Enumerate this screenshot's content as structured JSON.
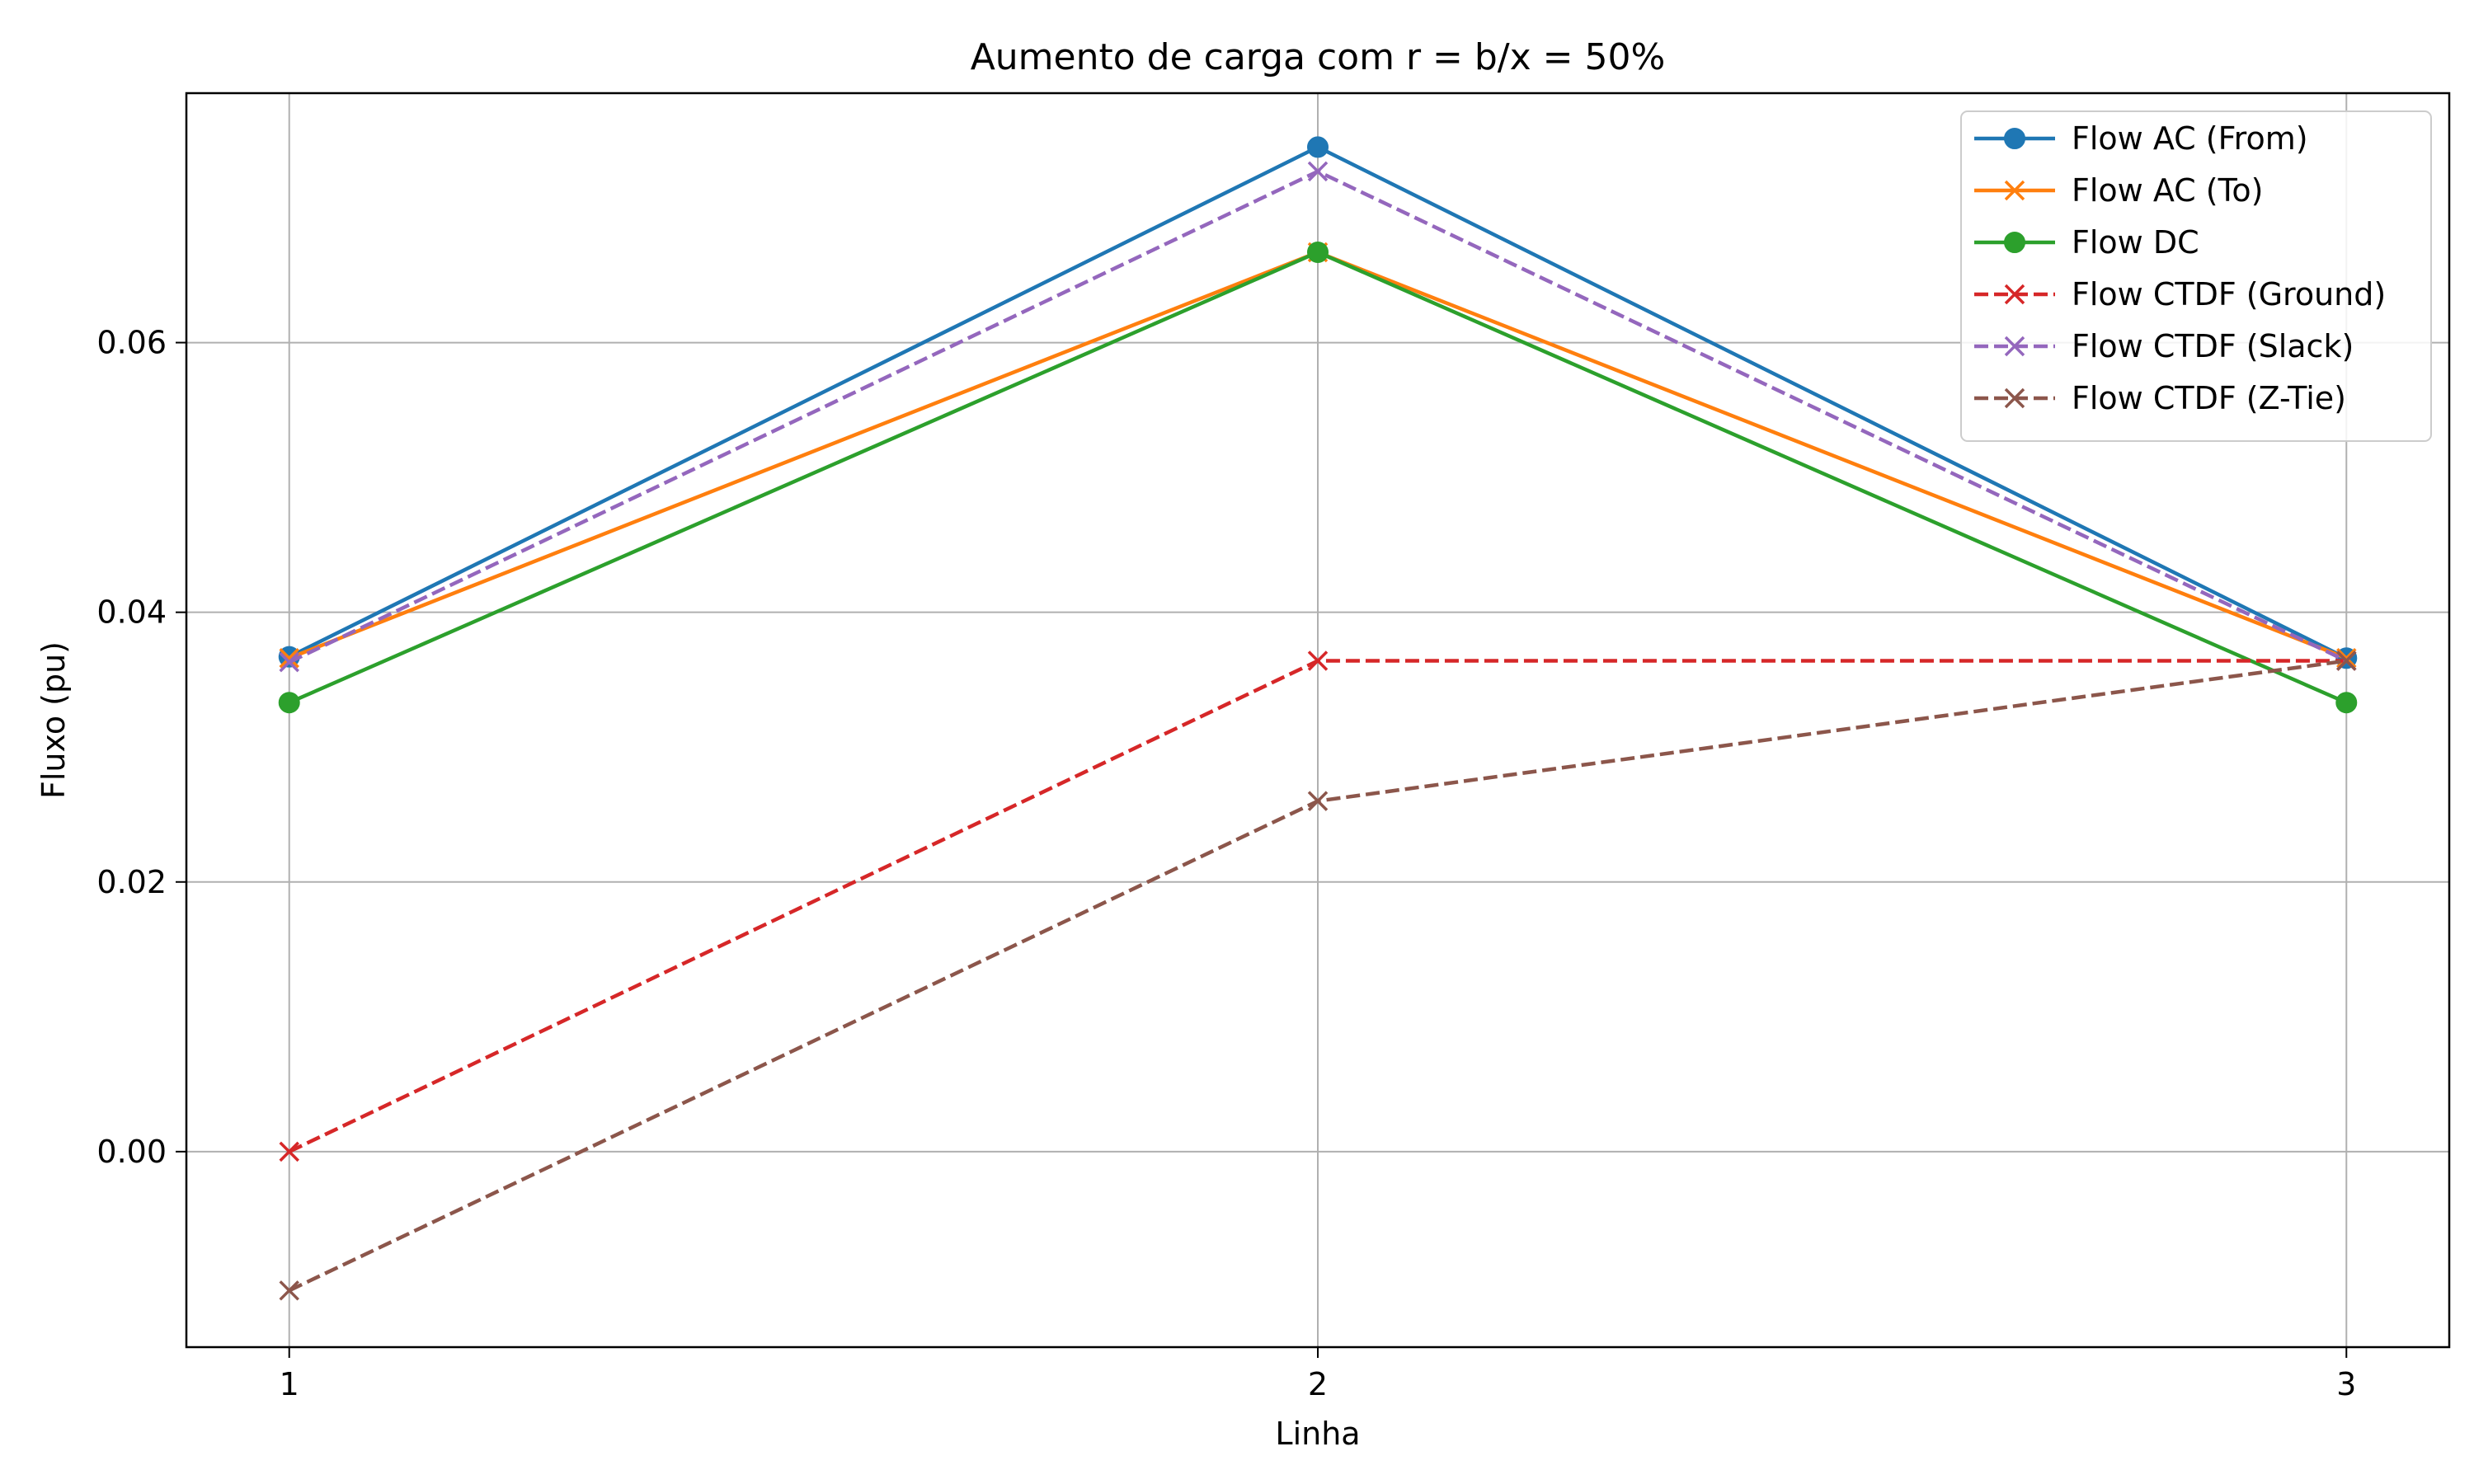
{
  "chart_data": {
    "type": "line",
    "title": "Aumento de carga com r = b/x = 50%",
    "xlabel": "Linha",
    "ylabel": "Fluxo (pu)",
    "x": [
      1,
      2,
      3
    ],
    "x_tick_labels": [
      "1",
      "2",
      "3"
    ],
    "xlim": [
      0.9,
      3.1
    ],
    "ylim": [
      -0.0145,
      0.0785
    ],
    "y_ticks": [
      0.0,
      0.02,
      0.04,
      0.06
    ],
    "y_tick_labels": [
      "0.00",
      "0.02",
      "0.04",
      "0.06"
    ],
    "grid": true,
    "legend_position": "top-right",
    "series": [
      {
        "name": "Flow AC (From)",
        "values": [
          0.0367,
          0.0745,
          0.0366
        ],
        "color": "#1f77b4",
        "linestyle": "solid",
        "marker": "circle"
      },
      {
        "name": "Flow AC (To)",
        "values": [
          0.0366,
          0.0667,
          0.0366
        ],
        "color": "#ff7f0e",
        "linestyle": "solid",
        "marker": "x"
      },
      {
        "name": "Flow DC",
        "values": [
          0.0333,
          0.0667,
          0.0333
        ],
        "color": "#2ca02c",
        "linestyle": "solid",
        "marker": "circle"
      },
      {
        "name": "Flow CTDF (Ground)",
        "values": [
          0.0,
          0.0364,
          0.0364
        ],
        "color": "#d62728",
        "linestyle": "dashed",
        "marker": "x"
      },
      {
        "name": "Flow CTDF (Slack)",
        "values": [
          0.0363,
          0.0727,
          0.0364
        ],
        "color": "#9467bd",
        "linestyle": "dashed",
        "marker": "x"
      },
      {
        "name": "Flow CTDF (Z-Tie)",
        "values": [
          -0.0103,
          0.026,
          0.0364
        ],
        "color": "#8c564b",
        "linestyle": "dashed",
        "marker": "x"
      }
    ]
  }
}
